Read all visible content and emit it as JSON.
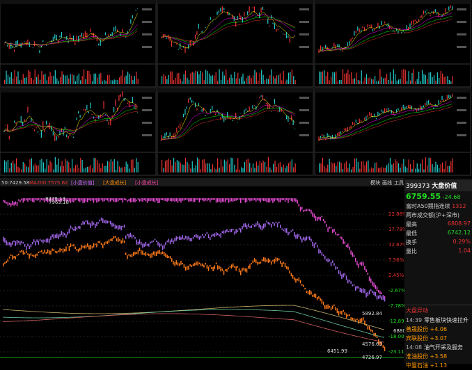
{
  "toolbar": {
    "legend": [
      "50:7429.58",
      "MA200:7575.62"
    ],
    "tags": [
      "[小盘价值]",
      "[大盘成长]",
      "[小盘成长]"
    ],
    "menu": [
      "模块",
      "画线",
      "工具"
    ]
  },
  "main_chart": {
    "axis_labels": [
      "22.88%",
      "17.78%",
      "12.67%",
      "7.56%",
      "2.45%",
      "-2.67%",
      "-7.78%",
      "-12.89%",
      "-18.00%",
      "-23.11%"
    ],
    "annotations": [
      "8479.13",
      "7963.18",
      "6451.99",
      "4576.63",
      "4726.97",
      "5892.84",
      "6880"
    ]
  },
  "quote": {
    "code": "399373",
    "name": "大盘价值",
    "price": "6759.55",
    "change": "-24.68",
    "futures_label": "富时A50期指连续",
    "futures_value": "1312",
    "turnover_label": "两市成交额(沪+深市)",
    "rows": [
      [
        "最高",
        "6808.97"
      ],
      [
        "最低",
        "6742.12"
      ],
      [
        "换手",
        "0.29%"
      ],
      [
        "量比",
        "1.04"
      ]
    ]
  },
  "news": {
    "title": "大盘异动",
    "items": [
      {
        "time": "14:39",
        "text": "零售板块快速拉升"
      },
      {
        "time": "",
        "text": "善晟股份 +4.06"
      },
      {
        "time": "",
        "text": "宾联股份 +3.07"
      },
      {
        "time": "14:08",
        "text": "油气开采及服务"
      },
      {
        "time": "",
        "text": "准油股份 +3.58"
      },
      {
        "time": "",
        "text": "中曼石油 +1.13"
      }
    ]
  }
}
